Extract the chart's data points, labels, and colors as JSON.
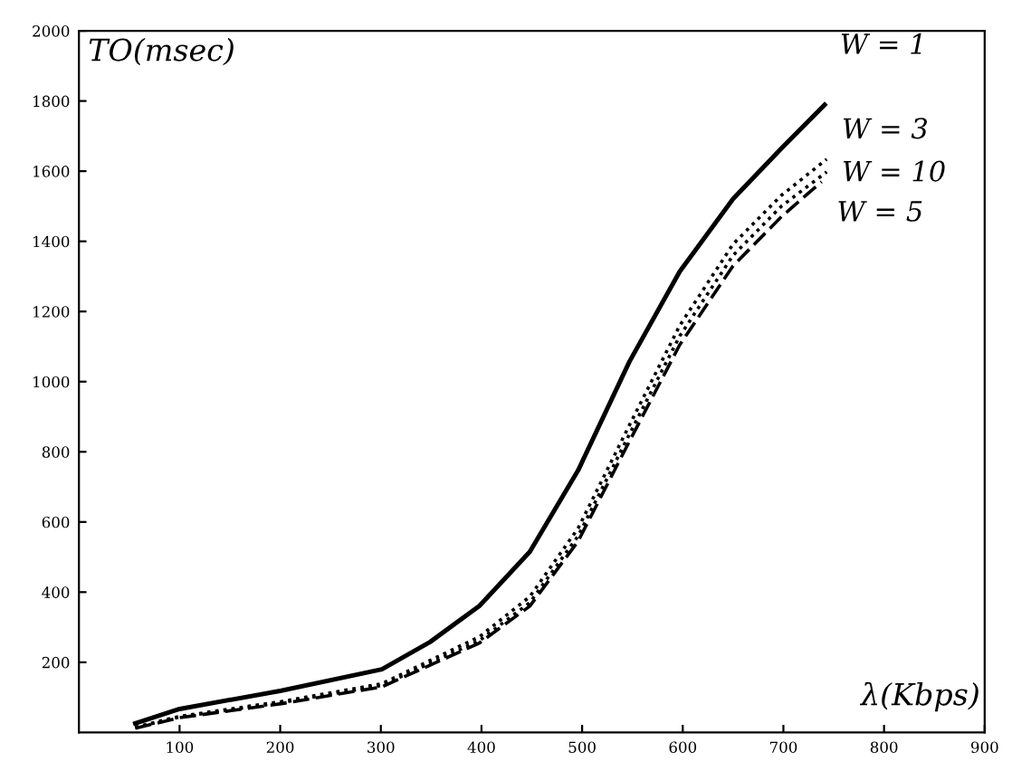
{
  "chart_data": {
    "type": "line",
    "xlabel": "λ(Kbps)",
    "ylabel": "TO(msec)",
    "xlim": [
      0,
      900
    ],
    "ylim": [
      0,
      2000
    ],
    "xticks": [
      100,
      200,
      300,
      400,
      500,
      600,
      700,
      800,
      900
    ],
    "yticks": [
      200,
      400,
      600,
      800,
      1000,
      1200,
      1400,
      1600,
      1800,
      2000
    ],
    "grid": false,
    "marker": "none",
    "series": [
      {
        "name": "W = 1",
        "color": "#000000",
        "line_style": "solid",
        "x": [
          56,
          100,
          201,
          301,
          349,
          398,
          448,
          496,
          547,
          597,
          650,
          698,
          741
        ],
        "values": [
          26,
          67,
          119,
          180,
          258,
          361,
          515,
          747,
          1057,
          1314,
          1521,
          1665,
          1789
        ]
      },
      {
        "name": "W = 3",
        "color": "#000000",
        "line_style": "dotted",
        "x": [
          56,
          100,
          201,
          301,
          398,
          448,
          496,
          547,
          597,
          650,
          698,
          743
        ],
        "values": [
          15,
          46,
          88,
          139,
          273,
          387,
          582,
          876,
          1160,
          1392,
          1531,
          1634
        ]
      },
      {
        "name": "W = 10",
        "color": "#000000",
        "line_style": "dotted",
        "x": [
          56,
          100,
          201,
          301,
          398,
          448,
          496,
          547,
          597,
          650,
          698,
          743
        ],
        "values": [
          14,
          44,
          85,
          134,
          262,
          370,
          560,
          850,
          1130,
          1360,
          1500,
          1598
        ]
      },
      {
        "name": "W = 5",
        "color": "#000000",
        "line_style": "dashed",
        "x": [
          56,
          100,
          201,
          301,
          398,
          448,
          496,
          547,
          597,
          650,
          698,
          738
        ],
        "values": [
          12,
          42,
          82,
          130,
          255,
          360,
          545,
          830,
          1105,
          1330,
          1470,
          1570
        ]
      }
    ]
  }
}
